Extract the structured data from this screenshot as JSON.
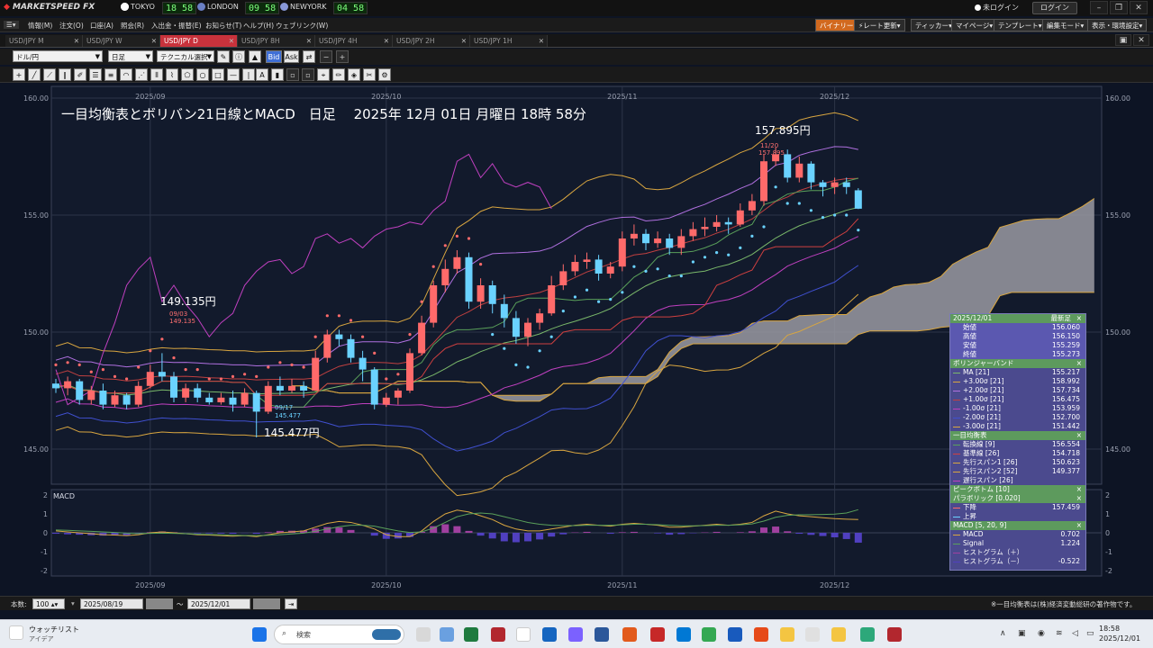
{
  "titlebar": {
    "app_title": "MARKETSPEED FX",
    "markets": [
      {
        "label": "TOKYO",
        "time": "18 58",
        "flag_color": "#d22"
      },
      {
        "label": "LONDON",
        "time": "09 58",
        "flag_color": "#6a7fc4"
      },
      {
        "label": "NEWYORK",
        "time": "04 58",
        "flag_color": "#8898d8"
      }
    ],
    "login_status": "未ログイン",
    "login_button": "ログイン"
  },
  "menu": {
    "items": [
      "情報(M)",
      "注文(O)",
      "口座(A)",
      "照会(R)",
      "入出金・振替(E)",
      "お知らせ(T)",
      "ヘルプ(H)",
      "ウェブリンク(W)"
    ],
    "right_buttons": [
      "バイナリー",
      "レート更新",
      "ティッカー",
      "マイページ",
      "テンプレート",
      "編集モード",
      "表示・環境設定"
    ]
  },
  "tabs": [
    {
      "label": "USD/JPY M",
      "active": false
    },
    {
      "label": "USD/JPY W",
      "active": false
    },
    {
      "label": "USD/JPY D",
      "active": true
    },
    {
      "label": "USD/JPY 8H",
      "active": false
    },
    {
      "label": "USD/JPY 4H",
      "active": false
    },
    {
      "label": "USD/JPY 2H",
      "active": false
    },
    {
      "label": "USD/JPY 1H",
      "active": false
    }
  ],
  "toolbar": {
    "pair": "ドル/円",
    "timeframe": "日足",
    "technical": "テクニカル選択",
    "bid": "Bid",
    "ask": "Ask"
  },
  "chart": {
    "title": "一目均衡表とボリバン21日線とMACD　日足　 2025年 12月 01日 月曜日 18時 58分",
    "x_labels": [
      "2025/09",
      "2025/10",
      "2025/11",
      "2025/12"
    ],
    "y_labels": [
      "160.00",
      "155.00",
      "150.00",
      "145.00"
    ],
    "macd_label": "MACD",
    "macd_y_labels": [
      "2",
      "1",
      "0",
      "-1",
      "-2"
    ],
    "annotations": {
      "high_big": "157.895円",
      "high_date": "11/20",
      "high_value": "157.895",
      "left_high_big": "149.135円",
      "left_high_date": "09/03",
      "left_high_value": "149.135",
      "low_date": "09/17",
      "low_value": "145.477",
      "low_big": "145.477円"
    },
    "colors": {
      "up": "#ff6a6a",
      "down": "#6ad2ff",
      "cloud": "#9a9aa2",
      "psar": "#ff6a6a",
      "psar_down": "#6ad2ff"
    }
  },
  "chart_data": {
    "type": "candlestick",
    "price_ylim": [
      143.5,
      160.5
    ],
    "macd_ylim": [
      -2,
      2
    ],
    "candles": [
      [
        147.8,
        147.6,
        148.0,
        147.4
      ],
      [
        147.6,
        147.9,
        148.1,
        147.3
      ],
      [
        147.9,
        147.1,
        148.0,
        146.9
      ],
      [
        147.1,
        147.5,
        147.7,
        146.9
      ],
      [
        147.5,
        146.9,
        147.8,
        146.7
      ],
      [
        146.9,
        147.3,
        147.5,
        146.8
      ],
      [
        147.3,
        146.9,
        147.4,
        146.7
      ],
      [
        146.9,
        147.7,
        147.9,
        146.8
      ],
      [
        147.7,
        148.3,
        148.6,
        147.6
      ],
      [
        148.3,
        148.1,
        149.1,
        147.9
      ],
      [
        148.1,
        147.2,
        148.3,
        147.0
      ],
      [
        147.2,
        147.6,
        147.8,
        147.0
      ],
      [
        147.6,
        147.2,
        147.8,
        147.0
      ],
      [
        147.2,
        147.0,
        147.4,
        146.9
      ],
      [
        147.0,
        147.2,
        147.4,
        146.9
      ],
      [
        147.2,
        146.9,
        147.5,
        146.6
      ],
      [
        146.9,
        147.4,
        147.6,
        146.8
      ],
      [
        147.4,
        146.6,
        147.5,
        145.5
      ],
      [
        146.6,
        147.7,
        147.9,
        146.5
      ],
      [
        147.7,
        147.5,
        148.1,
        147.3
      ],
      [
        147.5,
        147.7,
        148.0,
        147.4
      ],
      [
        147.7,
        147.5,
        147.9,
        147.2
      ],
      [
        147.5,
        148.9,
        149.2,
        147.5
      ],
      [
        148.9,
        149.9,
        150.1,
        148.7
      ],
      [
        149.9,
        149.7,
        150.1,
        149.4
      ],
      [
        149.7,
        148.9,
        149.9,
        148.7
      ],
      [
        148.9,
        148.4,
        149.2,
        147.9
      ],
      [
        148.4,
        146.9,
        148.5,
        146.7
      ],
      [
        146.9,
        147.2,
        147.4,
        146.8
      ],
      [
        147.2,
        147.5,
        147.6,
        146.9
      ],
      [
        147.5,
        149.1,
        149.3,
        147.4
      ],
      [
        149.1,
        150.4,
        150.7,
        149.0
      ],
      [
        150.4,
        152.0,
        152.2,
        150.2
      ],
      [
        152.0,
        152.7,
        153.1,
        151.7
      ],
      [
        152.7,
        153.2,
        153.5,
        152.5
      ],
      [
        153.2,
        151.3,
        153.4,
        151.0
      ],
      [
        151.3,
        152.0,
        152.3,
        151.0
      ],
      [
        152.0,
        151.2,
        152.2,
        150.8
      ],
      [
        151.2,
        150.6,
        151.6,
        150.2
      ],
      [
        150.6,
        149.8,
        150.9,
        149.5
      ],
      [
        149.8,
        150.4,
        150.6,
        149.4
      ],
      [
        150.4,
        150.8,
        151.0,
        150.1
      ],
      [
        150.8,
        152.0,
        152.4,
        150.7
      ],
      [
        152.0,
        152.6,
        152.9,
        151.8
      ],
      [
        152.6,
        153.0,
        153.3,
        152.4
      ],
      [
        153.0,
        153.1,
        153.4,
        152.7
      ],
      [
        153.1,
        152.5,
        153.3,
        152.2
      ],
      [
        152.5,
        152.8,
        153.0,
        152.3
      ],
      [
        152.8,
        154.0,
        154.3,
        152.6
      ],
      [
        154.0,
        154.2,
        154.6,
        153.7
      ],
      [
        154.2,
        153.8,
        154.4,
        153.5
      ],
      [
        153.8,
        154.0,
        154.3,
        153.6
      ],
      [
        154.0,
        153.6,
        154.2,
        153.3
      ],
      [
        153.6,
        154.1,
        154.4,
        153.3
      ],
      [
        154.1,
        154.4,
        154.7,
        153.9
      ],
      [
        154.4,
        154.5,
        154.9,
        154.1
      ],
      [
        154.5,
        154.7,
        155.0,
        154.3
      ],
      [
        154.7,
        154.6,
        154.9,
        154.2
      ],
      [
        154.6,
        155.2,
        155.5,
        154.5
      ],
      [
        155.2,
        155.6,
        155.9,
        155.0
      ],
      [
        155.6,
        157.3,
        157.6,
        155.4
      ],
      [
        157.3,
        157.6,
        157.895,
        157.1
      ],
      [
        157.6,
        156.6,
        157.8,
        156.4
      ],
      [
        156.6,
        157.2,
        157.5,
        156.4
      ],
      [
        157.2,
        156.4,
        157.3,
        156.1
      ],
      [
        156.4,
        156.2,
        156.5,
        155.8
      ],
      [
        156.2,
        156.4,
        156.6,
        155.9
      ],
      [
        156.4,
        156.2,
        156.6,
        155.9
      ],
      [
        156.06,
        155.273,
        156.15,
        155.259
      ]
    ],
    "macd": [
      0.1,
      0.05,
      0.0,
      -0.05,
      -0.1,
      -0.12,
      -0.15,
      -0.1,
      0.0,
      0.05,
      0.0,
      -0.05,
      -0.1,
      -0.12,
      -0.15,
      -0.18,
      -0.15,
      -0.2,
      -0.1,
      0.0,
      0.05,
      0.1,
      0.3,
      0.5,
      0.6,
      0.55,
      0.4,
      0.2,
      -0.1,
      -0.2,
      -0.2,
      0.1,
      0.6,
      1.0,
      1.2,
      1.1,
      0.9,
      0.7,
      0.4,
      0.2,
      0.1,
      0.1,
      0.2,
      0.3,
      0.4,
      0.45,
      0.4,
      0.35,
      0.45,
      0.5,
      0.45,
      0.4,
      0.3,
      0.3,
      0.35,
      0.4,
      0.45,
      0.4,
      0.45,
      0.55,
      0.9,
      1.15,
      1.0,
      0.9,
      0.85,
      0.8,
      0.75,
      0.72,
      0.702
    ],
    "signal": [
      0.15,
      0.13,
      0.1,
      0.08,
      0.05,
      0.02,
      -0.02,
      -0.04,
      -0.03,
      -0.02,
      -0.03,
      -0.05,
      -0.07,
      -0.09,
      -0.11,
      -0.13,
      -0.14,
      -0.15,
      -0.13,
      -0.1,
      -0.06,
      -0.02,
      0.08,
      0.2,
      0.32,
      0.4,
      0.4,
      0.35,
      0.22,
      0.1,
      0.02,
      0.05,
      0.25,
      0.55,
      0.85,
      1.0,
      1.05,
      1.0,
      0.85,
      0.7,
      0.55,
      0.45,
      0.4,
      0.38,
      0.38,
      0.4,
      0.4,
      0.4,
      0.42,
      0.45,
      0.45,
      0.43,
      0.4,
      0.37,
      0.37,
      0.38,
      0.4,
      0.4,
      0.42,
      0.47,
      0.62,
      0.82,
      0.92,
      0.95,
      0.96,
      0.97,
      0.99,
      1.05,
      1.224
    ]
  },
  "panel": {
    "date": "2025/12/01",
    "mode": "最新足",
    "ohlc": [
      {
        "k": "始値",
        "v": "156.060"
      },
      {
        "k": "高値",
        "v": "156.150"
      },
      {
        "k": "安値",
        "v": "155.259"
      },
      {
        "k": "終値",
        "v": "155.273"
      }
    ],
    "boll_title": "ボリンジャーバンド",
    "boll": [
      {
        "k": "MA [21]",
        "v": "155.217",
        "c": "#7ab86a"
      },
      {
        "k": "+3.00σ [21]",
        "v": "158.992",
        "c": "#d9a640"
      },
      {
        "k": "+2.00σ [21]",
        "v": "157.734",
        "c": "#b070e0"
      },
      {
        "k": "+1.00σ [21]",
        "v": "156.475",
        "c": "#c04040"
      },
      {
        "k": "-1.00σ [21]",
        "v": "153.959",
        "c": "#c040c0"
      },
      {
        "k": "-2.00σ [21]",
        "v": "152.700",
        "c": "#4050d0"
      },
      {
        "k": "-3.00σ [21]",
        "v": "151.442",
        "c": "#d9a640"
      }
    ],
    "ichi_title": "一目均衡表",
    "ichi": [
      {
        "k": "転換線 [9]",
        "v": "156.554",
        "c": "#5aa05a"
      },
      {
        "k": "基準線 [26]",
        "v": "154.718",
        "c": "#d04040"
      },
      {
        "k": "先行スパン1 [26]",
        "v": "150.623",
        "c": "#d9a640"
      },
      {
        "k": "先行スパン2 [52]",
        "v": "149.377",
        "c": "#d9a640"
      },
      {
        "k": "遅行スパン [26]",
        "v": "",
        "c": "#c040c0"
      }
    ],
    "peak_title": "ピークボトム [10]",
    "psar_title": "パラボリック [0.020]",
    "psar": [
      {
        "k": "下降",
        "v": "157.459",
        "c": "#ff6a6a"
      },
      {
        "k": "上昇",
        "v": "",
        "c": "#6ad2ff"
      }
    ],
    "macd_title": "MACD [5, 20, 9]",
    "macd": [
      {
        "k": "MACD",
        "v": "0.702",
        "c": "#d9a640"
      },
      {
        "k": "Signal",
        "v": "1.224",
        "c": "#5aa05a"
      },
      {
        "k": "ヒストグラム（＋）",
        "v": "",
        "c": "#a040a0"
      },
      {
        "k": "ヒストグラム（－）",
        "v": "-0.522",
        "c": "#5040c0"
      }
    ]
  },
  "status": {
    "count_label": "本数:",
    "count": "100",
    "from": "2025/08/19",
    "to": "2025/12/01",
    "tilde": "〜",
    "copyright": "※一目均衡表は(株)経済変動総研の著作物です。"
  },
  "taskbar": {
    "watchlist": "ウォッチリスト",
    "watchlist_sub": "アイデア",
    "search": "検索",
    "time": "18:58",
    "date": "2025/12/01"
  }
}
